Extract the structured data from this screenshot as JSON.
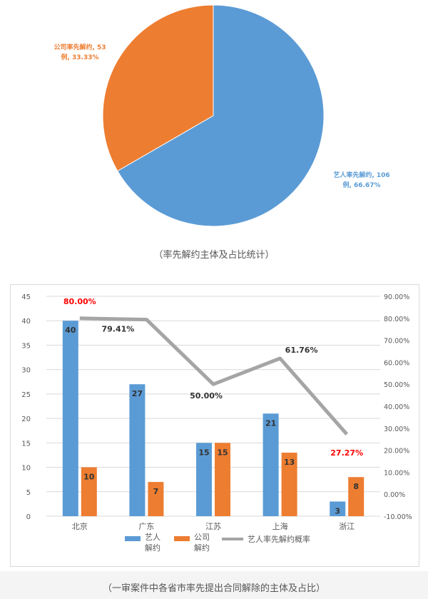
{
  "captions": {
    "pie": "（率先解约主体及占比统计）",
    "combo": "（一审案件中各省市率先提出合同解除的主体及占比）"
  },
  "chart_data": [
    {
      "type": "pie",
      "slices": [
        {
          "label": "艺人率先解约",
          "value": 106,
          "percent": "66.67%",
          "label_lines": [
            "艺人率先解约, 106",
            "例, 66.67%"
          ],
          "color": "#5b9bd5"
        },
        {
          "label": "公司率先解约",
          "value": 53,
          "percent": "33.33%",
          "label_lines": [
            "公司率先解约, 53",
            "例, 33.33%"
          ],
          "color": "#ed7d31"
        }
      ]
    },
    {
      "type": "bar",
      "categories": [
        "北京",
        "广东",
        "江苏",
        "上海",
        "浙江"
      ],
      "series": [
        {
          "name": "艺人解约",
          "legend_lines": [
            "艺人",
            "解约"
          ],
          "values": [
            40,
            27,
            15,
            21,
            3
          ],
          "color": "#5b9bd5",
          "axis": "left"
        },
        {
          "name": "公司解约",
          "legend_lines": [
            "公司",
            "解约"
          ],
          "values": [
            10,
            7,
            15,
            13,
            8
          ],
          "color": "#ed7d31",
          "axis": "left"
        },
        {
          "name": "艺人率先解约概率",
          "type": "line",
          "values": [
            80.0,
            79.41,
            50.0,
            61.76,
            27.27
          ],
          "labels": [
            "80.00%",
            "79.41%",
            "50.00%",
            "61.76%",
            "27.27%"
          ],
          "color": "#a5a5a5",
          "axis": "right"
        }
      ],
      "ylim_left": [
        0,
        45
      ],
      "yticks_left": [
        "0",
        "5",
        "10",
        "15",
        "20",
        "25",
        "30",
        "35",
        "40",
        "45"
      ],
      "ylim_right": [
        -10,
        90
      ],
      "yticks_right": [
        "-10.00%",
        "0.00%",
        "10.00%",
        "20.00%",
        "30.00%",
        "40.00%",
        "50.00%",
        "60.00%",
        "70.00%",
        "80.00%",
        "90.00%"
      ],
      "highlight_color": "#ff0000",
      "highlight_labels": [
        0,
        4
      ],
      "grid": true,
      "legend_position": "bottom"
    }
  ]
}
